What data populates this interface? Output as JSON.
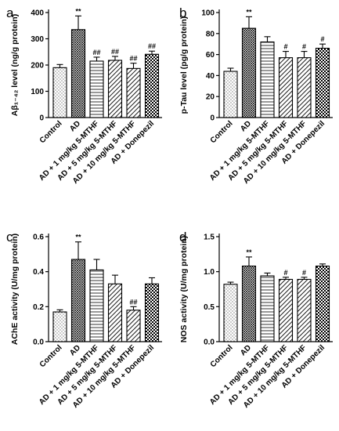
{
  "chart_data": [
    {
      "panel_letter": "a",
      "type": "bar",
      "categories": [
        "Control",
        "AD",
        "AD + 1 mg/kg 5-MTHF",
        "AD + 5 mg/kg 5-MTHF",
        "AD + 10 mg/kg 5-MTHF",
        "AD + Donepezil"
      ],
      "values": [
        190,
        335,
        215,
        218,
        187,
        241
      ],
      "errors": [
        12,
        52,
        15,
        15,
        20,
        12
      ],
      "significance": [
        "",
        "**",
        "##",
        "##",
        "##",
        "##"
      ],
      "ylabel": "Aβ₁₋₄₂ level (ng/g protein)",
      "ylim": [
        0,
        400
      ],
      "yticks": [
        0,
        100,
        200,
        300,
        400
      ],
      "patterns": [
        "dots",
        "crosshatch",
        "hlines",
        "diag",
        "diag",
        "checker"
      ]
    },
    {
      "panel_letter": "b",
      "type": "bar",
      "categories": [
        "Control",
        "AD",
        "AD + 1 mg/kg 5-MTHF",
        "AD + 5 mg/kg 5-MTHF",
        "AD + 10 mg/kg 5-MTHF",
        "AD + Donepezil"
      ],
      "values": [
        44,
        85,
        72,
        57,
        57,
        66
      ],
      "errors": [
        3,
        11,
        5,
        6,
        6,
        4
      ],
      "significance": [
        "",
        "**",
        "",
        "#",
        "#",
        "#"
      ],
      "ylabel": "p-Tau level (pg/g protein)",
      "ylim": [
        0,
        100
      ],
      "yticks": [
        0,
        20,
        40,
        60,
        80,
        100
      ],
      "patterns": [
        "dots",
        "crosshatch",
        "hlines",
        "diag",
        "diag",
        "checker"
      ]
    },
    {
      "panel_letter": "c",
      "type": "bar",
      "categories": [
        "Control",
        "AD",
        "AD + 1 mg/kg 5-MTHF",
        "AD + 5 mg/kg 5-MTHF",
        "AD + 10 mg/kg 5-MTHF",
        "AD + Donepezil"
      ],
      "values": [
        0.17,
        0.47,
        0.41,
        0.33,
        0.18,
        0.33
      ],
      "errors": [
        0.012,
        0.1,
        0.06,
        0.05,
        0.02,
        0.035
      ],
      "significance": [
        "",
        "**",
        "",
        "",
        "##",
        ""
      ],
      "ylabel": "AChE activity (U/mg protein)",
      "ylim": [
        0,
        0.6
      ],
      "yticks": [
        0.0,
        0.2,
        0.4,
        0.6
      ],
      "patterns": [
        "dots",
        "crosshatch",
        "hlines",
        "diag",
        "diag",
        "checker"
      ]
    },
    {
      "panel_letter": "d",
      "type": "bar",
      "categories": [
        "Control",
        "AD",
        "AD + 1 mg/kg 5-MTHF",
        "AD + 5 mg/kg 5-MTHF",
        "AD + 10 mg/kg 5-MTHF",
        "AD + Donepezil"
      ],
      "values": [
        0.82,
        1.08,
        0.94,
        0.89,
        0.89,
        1.08
      ],
      "errors": [
        0.03,
        0.13,
        0.04,
        0.03,
        0.03,
        0.03
      ],
      "significance": [
        "",
        "**",
        "",
        "#",
        "#",
        ""
      ],
      "ylabel": "NOS activity (U/mg protein)",
      "ylim": [
        0,
        1.5
      ],
      "yticks": [
        0.0,
        0.5,
        1.0,
        1.5
      ],
      "patterns": [
        "dots",
        "crosshatch",
        "hlines",
        "diag",
        "diag",
        "checker"
      ]
    }
  ]
}
